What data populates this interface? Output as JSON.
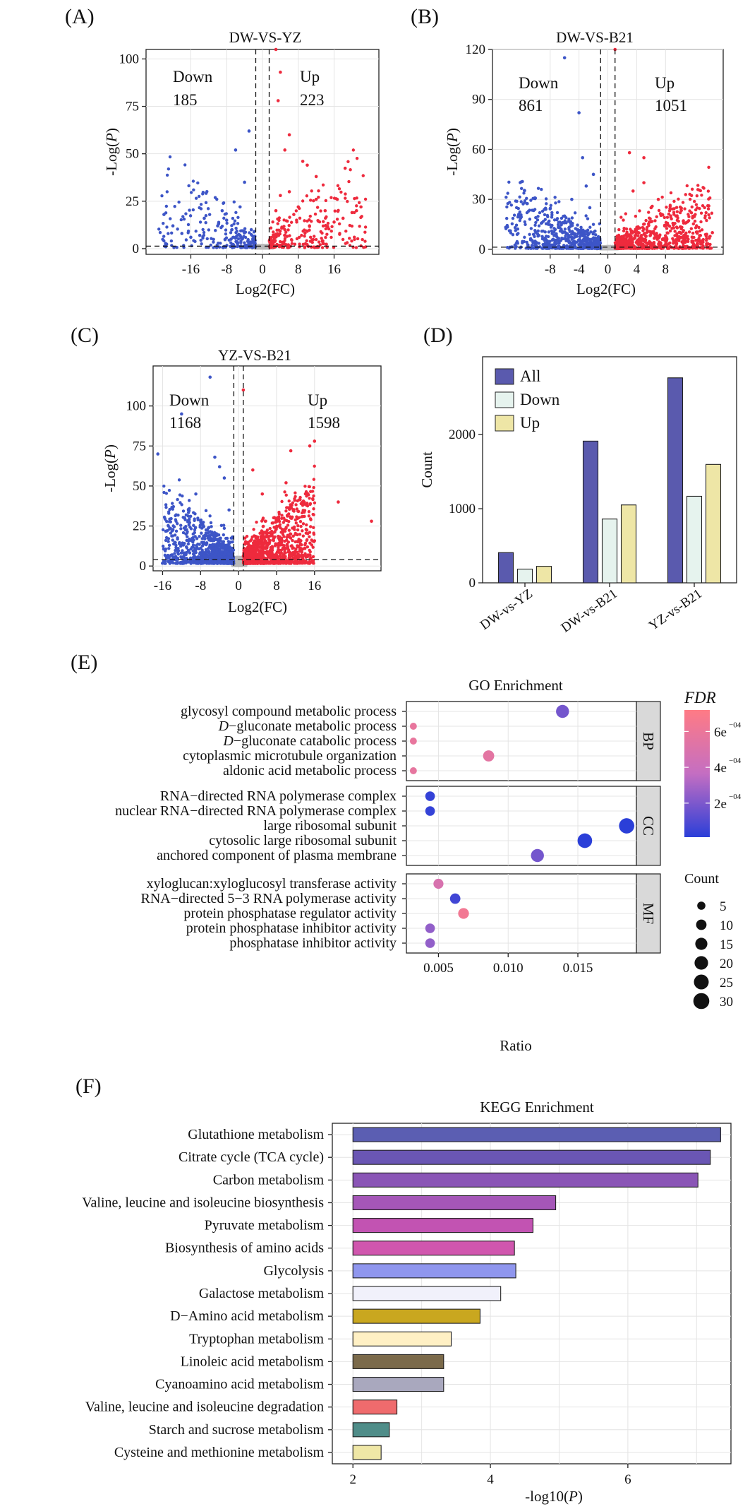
{
  "chart_data": [
    {
      "id": "A",
      "type": "scatter",
      "panel_label": "(A)",
      "title": "DW-VS-YZ",
      "xlabel": "Log2(FC)",
      "ylabel": "-Log(P)",
      "xlim": [
        -26,
        26
      ],
      "ylim": [
        -3,
        105
      ],
      "xticks": [
        -16,
        -8,
        0,
        8,
        16
      ],
      "yticks": [
        0,
        25,
        50,
        75,
        100
      ],
      "fc_threshold": 1.5,
      "p_threshold": 1.3,
      "down_label": "Down",
      "down_count": "185",
      "up_label": "Up",
      "up_count": "223",
      "down_points": [
        [
          -22,
          18
        ],
        [
          -20,
          12
        ],
        [
          -18,
          8
        ],
        [
          -16,
          6
        ],
        [
          -14,
          7
        ],
        [
          -13,
          16
        ],
        [
          -10,
          12
        ],
        [
          -9,
          20
        ],
        [
          -8,
          15
        ],
        [
          -6,
          52
        ],
        [
          -5,
          22
        ],
        [
          -4,
          35
        ],
        [
          -3,
          62
        ],
        [
          -2.5,
          10
        ],
        [
          -7,
          5
        ],
        [
          -5.5,
          3
        ]
      ],
      "up_points": [
        [
          3,
          105
        ],
        [
          3.5,
          78
        ],
        [
          4,
          93
        ],
        [
          5,
          52
        ],
        [
          6,
          60
        ],
        [
          7,
          18
        ],
        [
          9,
          46
        ],
        [
          10,
          44
        ],
        [
          10.5,
          12
        ],
        [
          12,
          38
        ],
        [
          14,
          20
        ],
        [
          16,
          14
        ],
        [
          18,
          16
        ],
        [
          20,
          19
        ],
        [
          21,
          20
        ],
        [
          22,
          22
        ],
        [
          3,
          20
        ],
        [
          4,
          28
        ],
        [
          5,
          10
        ],
        [
          6,
          30
        ],
        [
          8,
          22
        ],
        [
          12,
          26
        ]
      ],
      "cluster_spec": {
        "down_n": 220,
        "up_n": 260,
        "ns_n": 260
      }
    },
    {
      "id": "B",
      "type": "scatter",
      "panel_label": "(B)",
      "title": "DW-VS-B21",
      "xlabel": "Log2(FC)",
      "ylabel": "-Log(P)",
      "xlim": [
        -16,
        16
      ],
      "ylim": [
        -3,
        120
      ],
      "xticks": [
        -8,
        -4,
        0,
        4,
        8
      ],
      "yticks": [
        0,
        30,
        60,
        90,
        120
      ],
      "fc_threshold": 1,
      "p_threshold": 1.3,
      "down_label": "Down",
      "down_count": "861",
      "up_label": "Up",
      "up_count": "1051",
      "down_points": [
        [
          -6,
          115
        ],
        [
          -4,
          82
        ],
        [
          -3.5,
          55
        ],
        [
          -2,
          45
        ],
        [
          -3,
          38
        ],
        [
          -5,
          30
        ],
        [
          -6,
          20
        ],
        [
          -2.5,
          25
        ]
      ],
      "up_points": [
        [
          1,
          120
        ],
        [
          3,
          58
        ],
        [
          5,
          55
        ],
        [
          5,
          40
        ],
        [
          3.5,
          35
        ],
        [
          7,
          30
        ],
        [
          14.5,
          10
        ],
        [
          6,
          25
        ]
      ],
      "cluster_spec": {
        "down_n": 650,
        "up_n": 750,
        "ns_n": 350
      }
    },
    {
      "id": "C",
      "type": "scatter",
      "panel_label": "(C)",
      "title": "YZ-VS-B21",
      "xlabel": "Log2(FC)",
      "ylabel": "-Log(P)",
      "xlim": [
        -18,
        30
      ],
      "ylim": [
        -3,
        125
      ],
      "xticks": [
        -16,
        -8,
        0,
        8,
        16
      ],
      "yticks": [
        0,
        25,
        50,
        75,
        100
      ],
      "fc_threshold": 1,
      "p_threshold": 4,
      "down_label": "Down",
      "down_count": "1168",
      "up_label": "Up",
      "up_count": "1598",
      "down_points": [
        [
          -6,
          118
        ],
        [
          -12,
          95
        ],
        [
          -17,
          70
        ],
        [
          -5,
          68
        ],
        [
          -3,
          55
        ],
        [
          -9,
          45
        ],
        [
          -2,
          35
        ],
        [
          -4,
          62
        ]
      ],
      "up_points": [
        [
          1,
          110
        ],
        [
          16,
          78
        ],
        [
          15,
          75
        ],
        [
          3,
          60
        ],
        [
          11,
          72
        ],
        [
          10,
          52
        ],
        [
          21,
          40
        ],
        [
          28,
          28
        ],
        [
          5,
          45
        ]
      ],
      "cluster_spec": {
        "down_n": 900,
        "up_n": 1100,
        "ns_n": 450
      }
    },
    {
      "id": "D",
      "type": "bar",
      "panel_label": "(D)",
      "title": "",
      "ylabel": "Count",
      "ylim": [
        0,
        3050
      ],
      "yticks": [
        0,
        1000,
        2000
      ],
      "categories": [
        "DW-vs-YZ",
        "DW-vs-B21",
        "YZ-vs-B21"
      ],
      "legend_position": "top-left",
      "series": [
        {
          "name": "All",
          "color": "#5a5aae",
          "values": [
            408,
            1912,
            2766
          ]
        },
        {
          "name": "Down",
          "color": "#e6f3ee",
          "values": [
            185,
            861,
            1168
          ]
        },
        {
          "name": "Up",
          "color": "#eee6a6",
          "values": [
            223,
            1051,
            1598
          ]
        }
      ]
    },
    {
      "id": "E",
      "type": "scatter",
      "panel_label": "(E)",
      "title": "GO Enrichment",
      "xlabel": "Ratio",
      "xlim": [
        0.0027,
        0.0192
      ],
      "xticks": [
        0.005,
        0.01,
        0.015
      ],
      "xtick_labels": [
        "0.005",
        "0.010",
        "0.015"
      ],
      "facets": [
        {
          "name": "BP",
          "terms": [
            {
              "label": "glycosyl compound metabolic process",
              "ratio": 0.0139,
              "count": 18,
              "fdr": 0.00018
            },
            {
              "label_italic": "D",
              "label": "−gluconate metabolic process",
              "ratio": 0.0032,
              "count": 3,
              "fdr": 0.00058
            },
            {
              "label_italic": "D",
              "label": "−gluconate catabolic process",
              "ratio": 0.0032,
              "count": 3,
              "fdr": 0.00058
            },
            {
              "label": "cytoplasmic microtubule organization",
              "ratio": 0.0086,
              "count": 12,
              "fdr": 0.00055
            },
            {
              "label": "aldonic acid metabolic process",
              "ratio": 0.0032,
              "count": 3,
              "fdr": 0.00057
            }
          ]
        },
        {
          "name": "CC",
          "terms": [
            {
              "label": "RNA−directed RNA polymerase complex",
              "ratio": 0.0044,
              "count": 8,
              "fdr": 3e-05
            },
            {
              "label": "nuclear RNA−directed RNA polymerase complex",
              "ratio": 0.0044,
              "count": 8,
              "fdr": 3e-05
            },
            {
              "label": "large ribosomal subunit",
              "ratio": 0.0185,
              "count": 27,
              "fdr": 1e-05
            },
            {
              "label": "cytosolic large ribosomal subunit",
              "ratio": 0.0155,
              "count": 24,
              "fdr": 1e-05
            },
            {
              "label": "anchored component of plasma membrane",
              "ratio": 0.0121,
              "count": 18,
              "fdr": 0.00018
            }
          ]
        },
        {
          "name": "MF",
          "terms": [
            {
              "label": "xyloglucan:xyloglucosyl transferase activity",
              "ratio": 0.005,
              "count": 9,
              "fdr": 0.00048
            },
            {
              "label": "RNA−directed 5−3 RNA polymerase activity",
              "ratio": 0.0062,
              "count": 10,
              "fdr": 6e-05
            },
            {
              "label": "protein phosphatase regulator activity",
              "ratio": 0.0068,
              "count": 11,
              "fdr": 0.00064
            },
            {
              "label": "protein phosphatase inhibitor activity",
              "ratio": 0.0044,
              "count": 8,
              "fdr": 0.00025
            },
            {
              "label": "phosphatase inhibitor activity",
              "ratio": 0.0044,
              "count": 8,
              "fdr": 0.00025
            }
          ]
        }
      ],
      "color_legend": {
        "title": "FDR",
        "range": [
          1e-05,
          0.00072
        ],
        "low_color": "#2b3fd8",
        "mid_color": "#c46ec2",
        "high_color": "#ff7b85",
        "ticks": [
          0.0002,
          0.0004,
          0.0006
        ],
        "tick_mantissa": [
          "2e",
          "4e",
          "6e"
        ],
        "tick_exponent": "−04"
      },
      "size_legend": {
        "title": "Count",
        "values": [
          5,
          10,
          15,
          20,
          25,
          30
        ]
      }
    },
    {
      "id": "F",
      "type": "bar",
      "orientation": "horizontal",
      "panel_label": "(F)",
      "title": "KEGG Enrichment",
      "xlabel_prefix": "-log10(",
      "xlabel_italic": "P",
      "xlabel_suffix": ")",
      "xlim": [
        1.7,
        7.5
      ],
      "baseline": 2,
      "xticks": [
        2,
        4,
        6
      ],
      "categories": [
        "Glutathione metabolism",
        "Citrate cycle (TCA cycle)",
        "Carbon metabolism",
        "Valine, leucine and isoleucine biosynthesis",
        "Pyruvate metabolism",
        "Biosynthesis of amino acids",
        "Glycolysis",
        "Galactose metabolism",
        "D−Amino acid metabolism",
        "Tryptophan metabolism",
        "Linoleic acid metabolism",
        "Cyanoamino acid metabolism",
        "Valine, leucine and isoleucine degradation",
        "Starch and sucrose metabolism",
        "Cysteine and methionine metabolism"
      ],
      "values": [
        7.35,
        7.2,
        7.02,
        4.95,
        4.62,
        4.35,
        4.37,
        4.15,
        3.85,
        3.43,
        3.32,
        3.32,
        2.64,
        2.53,
        2.41
      ],
      "colors": [
        "#5b5eb2",
        "#6a56b4",
        "#8a55b6",
        "#a556b8",
        "#c253b2",
        "#d056ae",
        "#8f96ee",
        "#f1f1fb",
        "#c9a71f",
        "#fff0c4",
        "#7b6a4a",
        "#a9a8be",
        "#ef6b6d",
        "#4f8d89",
        "#efe7a6"
      ]
    }
  ]
}
